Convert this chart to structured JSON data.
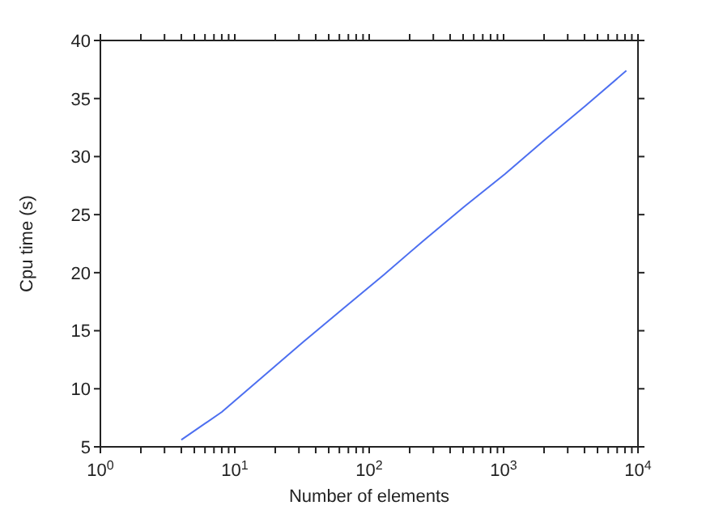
{
  "chart_data": {
    "type": "line",
    "xlabel": "Number of elements",
    "ylabel": "Cpu time (s)",
    "log": "x",
    "marker": "none",
    "line_style": "solid",
    "x": [
      4,
      8,
      16,
      32,
      64,
      128,
      256,
      512,
      1024,
      2048,
      4096,
      8192
    ],
    "series": [
      {
        "color": "#4d6ff0",
        "values": [
          5.6,
          8.0,
          11.0,
          14.0,
          16.9,
          19.8,
          22.8,
          25.7,
          28.5,
          31.5,
          34.4,
          37.4
        ]
      }
    ],
    "xlim": [
      1,
      10000
    ],
    "xticks": [
      {
        "value": 1,
        "label": "10$^{0}$"
      },
      {
        "value": 2,
        "label": null
      },
      {
        "value": 3,
        "label": null
      },
      {
        "value": 4,
        "label": null
      },
      {
        "value": 5,
        "label": null
      },
      {
        "value": 6,
        "label": null
      },
      {
        "value": 7,
        "label": null
      },
      {
        "value": 8,
        "label": null
      },
      {
        "value": 9,
        "label": null
      },
      {
        "value": 10,
        "label": "10$^{1}$"
      },
      {
        "value": 20,
        "label": null
      },
      {
        "value": 30,
        "label": null
      },
      {
        "value": 40,
        "label": null
      },
      {
        "value": 50,
        "label": null
      },
      {
        "value": 60,
        "label": null
      },
      {
        "value": 70,
        "label": null
      },
      {
        "value": 80,
        "label": null
      },
      {
        "value": 90,
        "label": null
      },
      {
        "value": 100,
        "label": "10$^{2}$"
      },
      {
        "value": 200,
        "label": null
      },
      {
        "value": 300,
        "label": null
      },
      {
        "value": 400,
        "label": null
      },
      {
        "value": 500,
        "label": null
      },
      {
        "value": 600,
        "label": null
      },
      {
        "value": 700,
        "label": null
      },
      {
        "value": 800,
        "label": null
      },
      {
        "value": 900,
        "label": null
      },
      {
        "value": 1000,
        "label": "10$^{3}$"
      },
      {
        "value": 2000,
        "label": null
      },
      {
        "value": 3000,
        "label": null
      },
      {
        "value": 4000,
        "label": null
      },
      {
        "value": 5000,
        "label": null
      },
      {
        "value": 6000,
        "label": null
      },
      {
        "value": 7000,
        "label": null
      },
      {
        "value": 8000,
        "label": null
      },
      {
        "value": 9000,
        "label": null
      },
      {
        "value": 10000,
        "label": "10$^{4}$"
      }
    ],
    "ylim": [
      5,
      40
    ],
    "yticks": [
      5,
      10,
      15,
      20,
      25,
      30,
      35,
      40
    ]
  }
}
